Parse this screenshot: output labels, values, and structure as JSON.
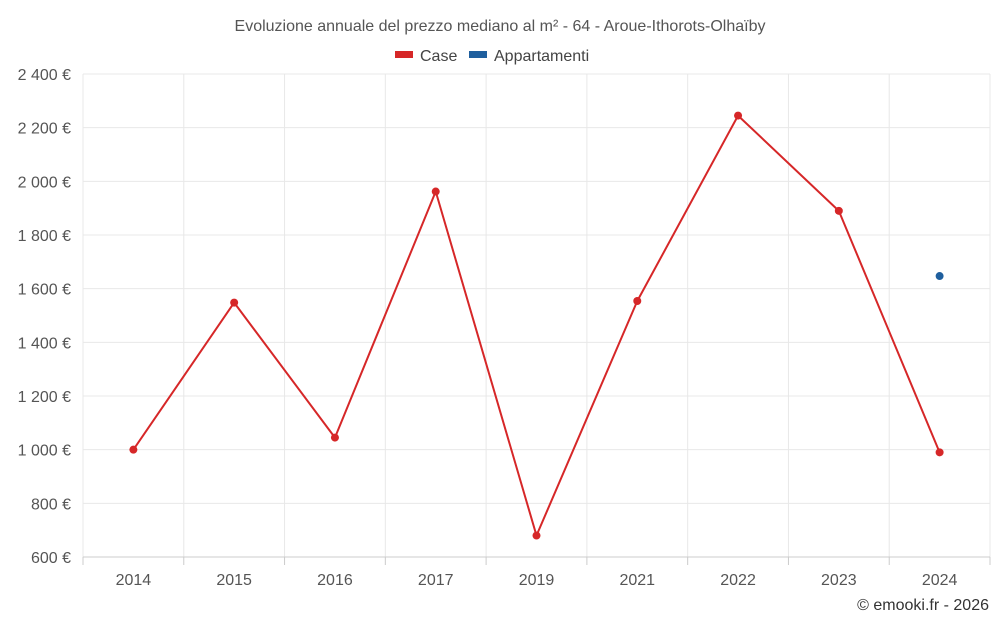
{
  "chart_data": {
    "type": "line",
    "title": "Evoluzione annuale del prezzo mediano al m² - 64 - Aroue-Ithorots-Olhaïby",
    "categories": [
      "2014",
      "2015",
      "2016",
      "2017",
      "2019",
      "2021",
      "2022",
      "2023",
      "2024"
    ],
    "series": [
      {
        "name": "Case",
        "color": "#d62728",
        "values": [
          1000,
          1548,
          1045,
          1962,
          680,
          1554,
          2245,
          1890,
          990
        ]
      },
      {
        "name": "Appartamenti",
        "color": "#1f5f9e",
        "values": [
          null,
          null,
          null,
          null,
          null,
          null,
          null,
          null,
          1647
        ]
      }
    ],
    "ylim": [
      600,
      2400
    ],
    "yticks": [
      600,
      800,
      1000,
      1200,
      1400,
      1600,
      1800,
      2000,
      2200,
      2400
    ],
    "ytick_labels": [
      "600 €",
      "800 €",
      "1 000 €",
      "1 200 €",
      "1 400 €",
      "1 600 €",
      "1 800 €",
      "2 000 €",
      "2 200 €",
      "2 400 €"
    ],
    "xlabel": "",
    "ylabel": "",
    "grid": true,
    "legend": "top-center",
    "credit": "© emooki.fr - 2026"
  }
}
